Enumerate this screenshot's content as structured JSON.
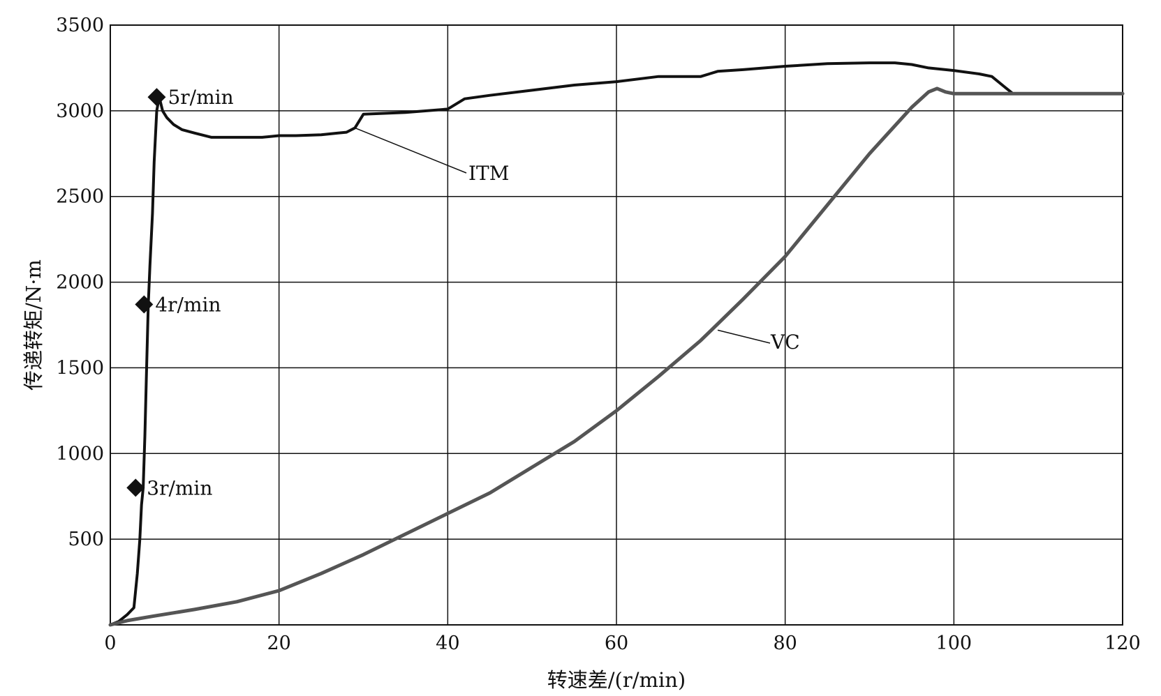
{
  "chart_data": {
    "type": "line",
    "xlabel": "转速差/(r/min)",
    "ylabel": "传递转矩/N·m",
    "xlim": [
      0,
      120
    ],
    "ylim": [
      0,
      3500
    ],
    "grid": true,
    "x_ticks": [
      "0",
      "20",
      "40",
      "60",
      "80",
      "100",
      "120"
    ],
    "y_ticks": [
      "500",
      "1000",
      "1500",
      "2000",
      "2500",
      "3000",
      "3500"
    ],
    "series": [
      {
        "name": "ITM",
        "color": "#111111",
        "x": [
          0,
          1,
          2,
          2.8,
          3.2,
          3.5,
          3.7,
          3.9,
          4.1,
          4.3,
          4.5,
          4.7,
          5.0,
          5.2,
          5.5,
          5.8,
          6.2,
          6.7,
          7.5,
          8.5,
          10,
          12,
          15,
          18,
          20,
          22,
          25,
          27,
          28,
          29,
          30,
          35,
          40,
          42,
          45,
          50,
          55,
          60,
          65,
          70,
          72,
          75,
          80,
          85,
          90,
          93,
          95,
          97,
          100,
          103,
          104.5,
          106,
          107,
          110,
          115,
          120
        ],
        "y": [
          0,
          20,
          60,
          100,
          300,
          500,
          700,
          800,
          1100,
          1500,
          1870,
          2100,
          2400,
          2700,
          3000,
          3080,
          3000,
          2960,
          2920,
          2890,
          2870,
          2845,
          2845,
          2845,
          2855,
          2855,
          2860,
          2870,
          2875,
          2900,
          2980,
          2990,
          3010,
          3070,
          3090,
          3120,
          3150,
          3170,
          3200,
          3200,
          3230,
          3240,
          3260,
          3275,
          3280,
          3280,
          3270,
          3250,
          3235,
          3215,
          3200,
          3140,
          3100,
          3100,
          3100,
          3100
        ]
      },
      {
        "name": "VC",
        "color": "#555555",
        "x": [
          0,
          2,
          5,
          10,
          15,
          20,
          25,
          30,
          35,
          40,
          45,
          50,
          55,
          60,
          65,
          70,
          75,
          80,
          85,
          90,
          95,
          97,
          98,
          99,
          100,
          105,
          110,
          115,
          120
        ],
        "y": [
          0,
          25,
          50,
          90,
          135,
          200,
          300,
          410,
          530,
          650,
          770,
          920,
          1070,
          1250,
          1450,
          1660,
          1900,
          2150,
          2450,
          2750,
          3020,
          3110,
          3130,
          3110,
          3100,
          3100,
          3100,
          3100,
          3100
        ]
      }
    ],
    "markers": [
      {
        "series": "ITM",
        "x": 3,
        "y": 800,
        "label": "3r/min"
      },
      {
        "series": "ITM",
        "x": 4,
        "y": 1870,
        "label": "4r/min"
      },
      {
        "series": "ITM",
        "x": 5.5,
        "y": 3080,
        "label": "5r/min"
      }
    ],
    "annotations": [
      {
        "label": "ITM",
        "x": 29,
        "y": 2900
      },
      {
        "label": "VC",
        "x": 72,
        "y": 1720
      }
    ]
  }
}
